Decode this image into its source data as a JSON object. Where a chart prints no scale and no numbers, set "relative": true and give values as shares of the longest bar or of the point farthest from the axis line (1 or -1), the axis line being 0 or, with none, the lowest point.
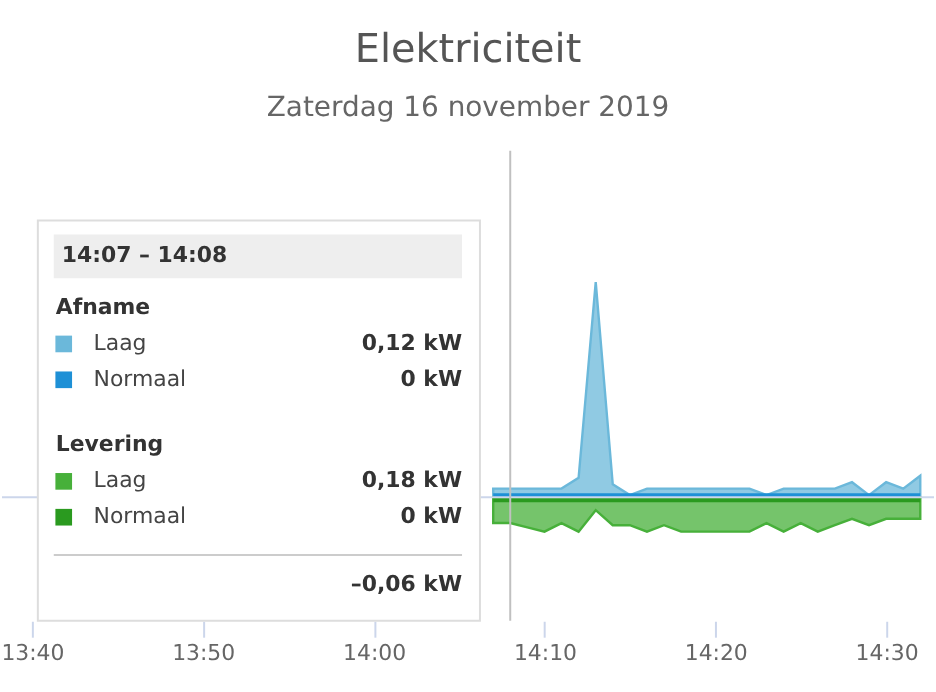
{
  "chart_data": {
    "type": "area",
    "title": "Elektriciteit",
    "subtitle": "Zaterdag 16 november 2019",
    "relative": true,
    "x": [
      14.1167,
      14.1333,
      14.15,
      14.1667,
      14.1833,
      14.2,
      14.2167,
      14.2333,
      14.25,
      14.2667,
      14.2833,
      14.3,
      14.3167,
      14.3333,
      14.35,
      14.3667,
      14.3833,
      14.4,
      14.4167,
      14.4333,
      14.45,
      14.4667,
      14.4833,
      14.5,
      14.5167,
      14.5333
    ],
    "series": [
      {
        "name": "Laag",
        "color": "#6bb8da",
        "values": [
          0.04,
          0.04,
          0.04,
          0.04,
          0.04,
          0.09,
          1,
          0.06,
          0.01,
          0.04,
          0.04,
          0.04,
          0.04,
          0.04,
          0.04,
          0.04,
          0.01,
          0.04,
          0.04,
          0.04,
          0.04,
          0.07,
          0.01,
          0.07,
          0.04,
          0.1
        ]
      },
      {
        "name": "Normaal",
        "type": "line",
        "color": "#1e90d6",
        "values": [
          0,
          0,
          0,
          0,
          0,
          0,
          0,
          0,
          0,
          0,
          0,
          0,
          0,
          0,
          0,
          0,
          0,
          0,
          0,
          0,
          0,
          0,
          0,
          0,
          0,
          0
        ]
      },
      {
        "name": "Laag",
        "color": "#47b03a",
        "values": [
          -0.12,
          -0.12,
          -0.14,
          -0.16,
          -0.12,
          -0.16,
          -0.06,
          -0.13,
          -0.13,
          -0.16,
          -0.13,
          -0.16,
          -0.16,
          -0.16,
          -0.16,
          -0.16,
          -0.12,
          -0.16,
          -0.12,
          -0.16,
          -0.13,
          -0.1,
          -0.13,
          -0.1,
          -0.1,
          -0.1
        ]
      },
      {
        "name": "Normaal",
        "type": "line",
        "color": "#2a9a1f",
        "values": [
          0,
          0,
          0,
          0,
          0,
          0,
          0,
          0,
          0,
          0,
          0,
          0,
          0,
          0,
          0,
          0,
          0,
          0,
          0,
          0,
          0,
          0,
          0,
          0,
          0,
          0
        ]
      }
    ],
    "xlim": [
      13.6375,
      14.5467
    ],
    "xticks": [
      {
        "value": 13.6667,
        "label": "13:40"
      },
      {
        "value": 13.8333,
        "label": "13:50"
      },
      {
        "value": 14,
        "label": "14:00"
      },
      {
        "value": 14.1667,
        "label": "14:10"
      },
      {
        "value": 14.3333,
        "label": "14:20"
      },
      {
        "value": 14.5,
        "label": "14:30"
      }
    ],
    "ref_lines": [
      {
        "axis": "x",
        "value": 14.1333,
        "color": "#c0c0c0"
      }
    ],
    "legend": "bottom left",
    "annotations": [
      "14:07 – 14:08",
      "Afname",
      "0,12 kW",
      "0 kW",
      "Levering",
      "0,18 kW",
      "0 kW",
      "–0,06 kW"
    ]
  }
}
